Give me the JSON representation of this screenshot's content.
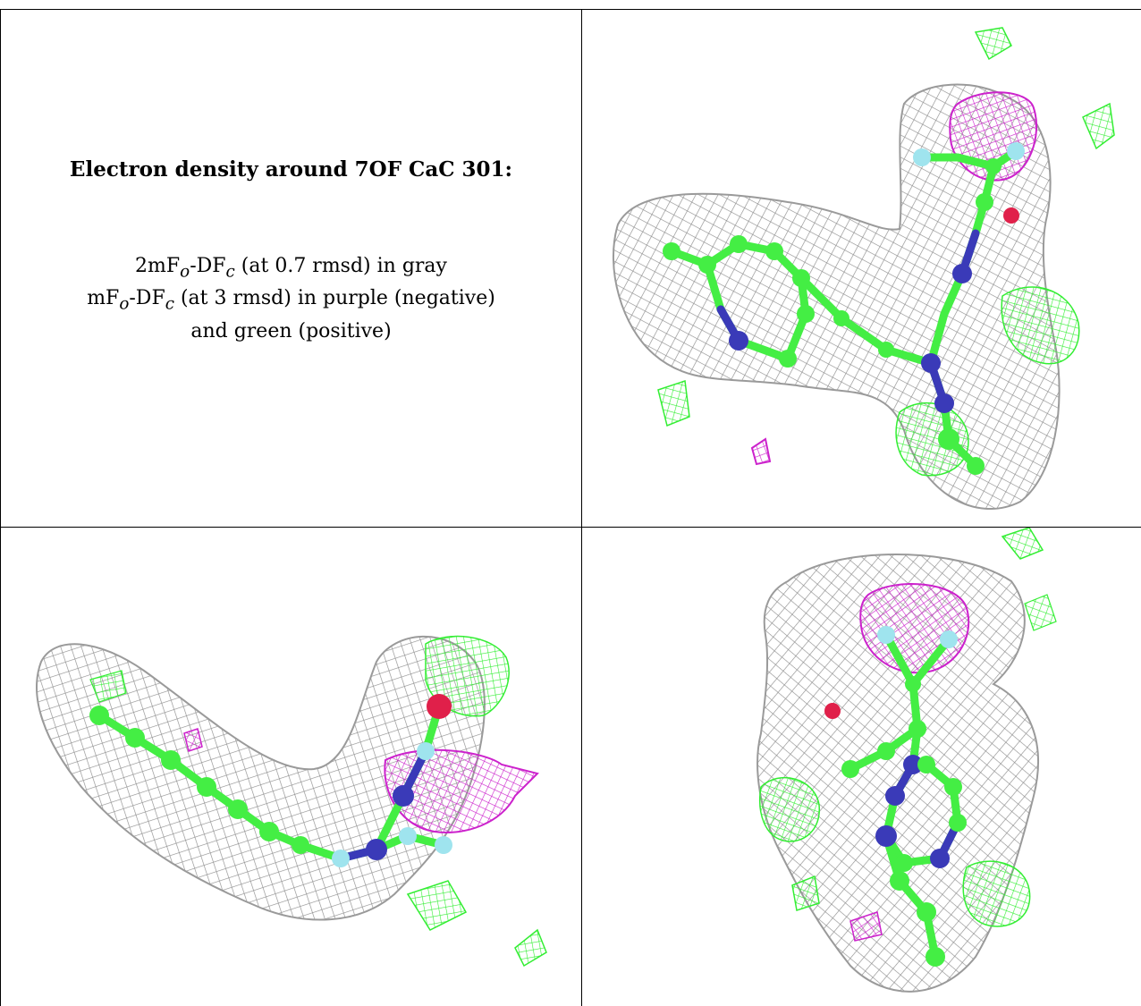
{
  "caption": {
    "title": "Electron density around 7OF CaC 301:",
    "line1_a": "2mF",
    "line1_sub1": "o",
    "line1_b": "-DF",
    "line1_sub2": "c",
    "line1_c": " (at 0.7 rmsd) in gray",
    "line2_a": "mF",
    "line2_sub1": "o",
    "line2_b": "-DF",
    "line2_sub2": "c",
    "line2_c": " (at 3 rmsd) in purple (negative)",
    "line3": "and green (positive)"
  },
  "colors": {
    "mesh_gray": "#9a9a9a",
    "mesh_purple": "#cc22cc",
    "mesh_green": "#33ee33",
    "carbon": "#44ee44",
    "nitrogen": "#3a3ab8",
    "oxygen": "#e0204a",
    "hydrogen": "#9fe4ee"
  },
  "views": [
    "top-right view",
    "bottom-left view",
    "bottom-right view"
  ]
}
